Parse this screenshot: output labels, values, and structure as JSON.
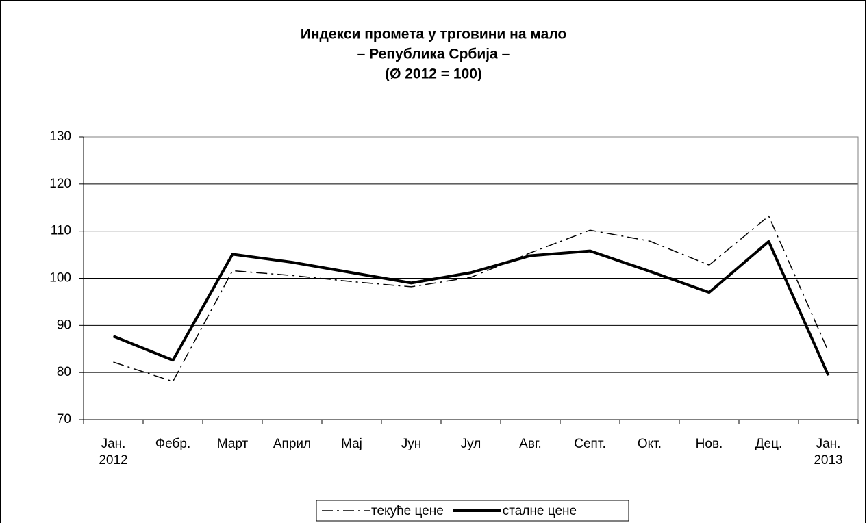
{
  "chart_data": {
    "type": "line",
    "title": [
      "Индекси промета у трговини на мало",
      "– Република Србија –",
      "(Ø 2012 = 100)"
    ],
    "categories": [
      "Јан. 2012",
      "Фебр.",
      "Март",
      "Април",
      "Мај",
      "Јун",
      "Јул",
      "Авг.",
      "Септ.",
      "Окт.",
      "Нов.",
      "Дец.",
      "Јан. 2013"
    ],
    "series": [
      {
        "name": "текуће цене",
        "color": "#000000",
        "style": "dash-dot",
        "values": [
          82.2,
          78.1,
          101.6,
          100.6,
          99.3,
          98.2,
          100.2,
          105.4,
          110.2,
          107.9,
          102.8,
          113.2,
          84.5
        ]
      },
      {
        "name": "сталне цене",
        "color": "#000000",
        "style": "solid",
        "values": [
          87.7,
          82.6,
          105.1,
          103.4,
          101.2,
          99.0,
          101.2,
          104.8,
          105.8,
          101.5,
          97.0,
          107.8,
          79.4
        ]
      }
    ],
    "ylim": [
      70,
      130
    ],
    "yticks": [
      70,
      80,
      90,
      100,
      110,
      120,
      130
    ],
    "grid": true,
    "legend": "bottom"
  }
}
